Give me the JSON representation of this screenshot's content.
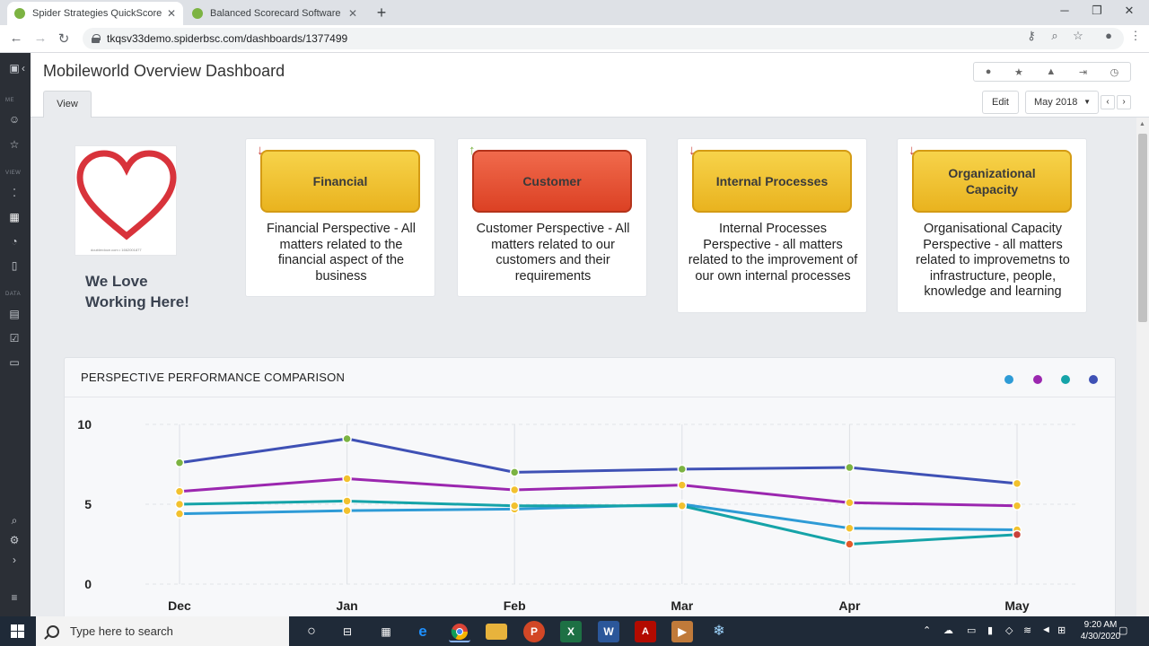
{
  "browser": {
    "tabs": [
      {
        "title": "Spider Strategies QuickScore",
        "active": true
      },
      {
        "title": "Balanced Scorecard Software by",
        "active": false
      }
    ],
    "new_tab": "+",
    "url": "tkqsv33demo.spiderbsc.com/dashboards/1377499"
  },
  "sidebar": {
    "labels": {
      "me": "ME",
      "view": "VIEW",
      "data": "DATA"
    }
  },
  "header": {
    "title": "Mobileworld Overview Dashboard",
    "tab_view": "View",
    "edit_label": "Edit",
    "date_selected": "May 2018",
    "header_icons": [
      "info-icon",
      "star-icon",
      "warning-icon",
      "export-icon",
      "history-icon"
    ]
  },
  "logo": {
    "caption": "doublerdoce.com • 1662001877",
    "tagline_line1": "We Love",
    "tagline_line2": "Working Here!"
  },
  "perspectives": [
    {
      "name": "Financial",
      "trend": "down",
      "status_color": "#f2c12e",
      "description": "Financial Perspective - All matters related to the financial aspect of the business"
    },
    {
      "name": "Customer",
      "trend": "up",
      "status_color": "#e8532f",
      "description": "Customer Perspective - All matters related to our customers and their requirements"
    },
    {
      "name": "Internal Processes",
      "trend": "down",
      "status_color": "#f2c12e",
      "description": "Internal Processes Perspective - all matters related to the improvement of our own internal processes"
    },
    {
      "name": "Organizational Capacity",
      "trend": "down",
      "status_color": "#f2c12e",
      "description": "Organisational Capacity Perspective - all matters related to improvemetns to infrastructure, people, knowledge and learning"
    }
  ],
  "chart_data": {
    "type": "line",
    "title": "PERSPECTIVE PERFORMANCE COMPARISON",
    "categories": [
      "Dec",
      "Jan",
      "Feb",
      "Mar",
      "Apr",
      "May"
    ],
    "ylim": [
      0,
      10
    ],
    "yticks": [
      0,
      5,
      10
    ],
    "grid": true,
    "legend": "top-right",
    "series": [
      {
        "color": "#2e9bd6",
        "values": [
          4.4,
          4.6,
          4.7,
          5.0,
          3.5,
          3.4
        ],
        "point_colors": [
          "#f2c12e",
          "#f2c12e",
          "#f2c12e",
          "#f2c12e",
          "#f2c12e",
          "#f2c12e"
        ]
      },
      {
        "color": "#9b27af",
        "values": [
          5.8,
          6.6,
          5.9,
          6.2,
          5.1,
          4.9
        ],
        "point_colors": [
          "#f2c12e",
          "#f2c12e",
          "#f2c12e",
          "#f2c12e",
          "#f2c12e",
          "#f2c12e"
        ]
      },
      {
        "color": "#15a3a8",
        "values": [
          5.0,
          5.2,
          4.9,
          4.9,
          2.5,
          3.1
        ],
        "point_colors": [
          "#f2c12e",
          "#f2c12e",
          "#f2c12e",
          "#f2c12e",
          "#e35a2b",
          "#c9413a"
        ]
      },
      {
        "color": "#3f51b5",
        "values": [
          7.6,
          9.1,
          7.0,
          7.2,
          7.3,
          6.3
        ],
        "point_colors": [
          "#7cb342",
          "#7cb342",
          "#7cb342",
          "#7cb342",
          "#7cb342",
          "#f2c12e"
        ]
      }
    ]
  },
  "taskbar": {
    "search_placeholder": "Type here to search",
    "time": "9:20 AM",
    "date": "4/30/2020"
  }
}
